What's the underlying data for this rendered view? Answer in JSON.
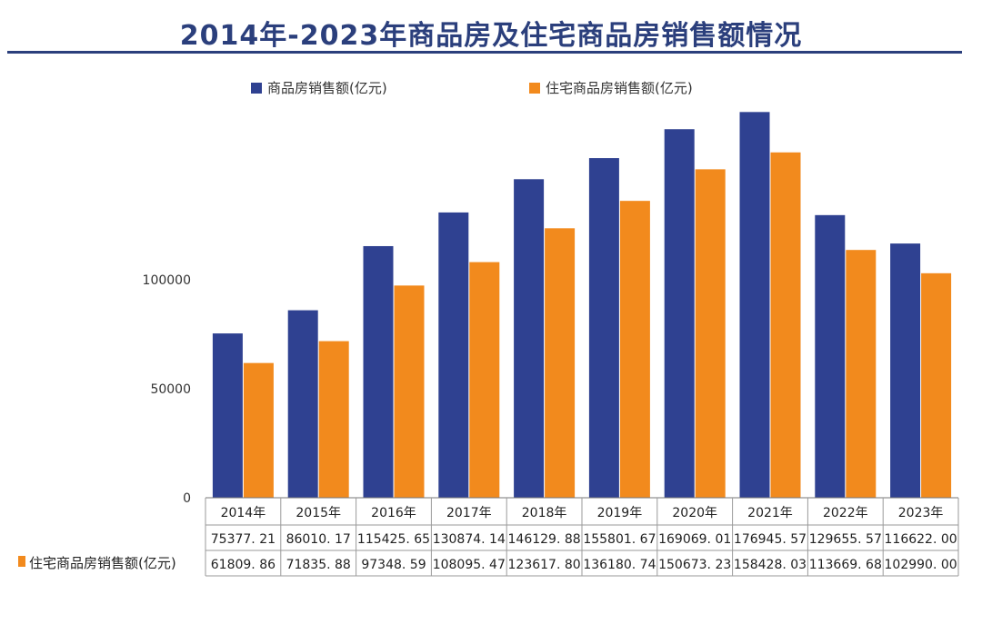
{
  "chart_data": {
    "type": "bar",
    "title": "2014年-2023年商品房及住宅商品房销售额情况",
    "categories": [
      "2014年",
      "2015年",
      "2016年",
      "2017年",
      "2018年",
      "2019年",
      "2020年",
      "2021年",
      "2022年",
      "2023年"
    ],
    "series": [
      {
        "name": "商品房销售额(亿元)",
        "color": "#2f4191",
        "values": [
          75377.21,
          86010.17,
          115425.65,
          130874.14,
          146129.88,
          155801.67,
          169069.01,
          176945.57,
          129655.57,
          116622.0
        ],
        "labels": [
          "75377. 21",
          "86010. 17",
          "115425. 65",
          "130874. 14",
          "146129. 88",
          "155801. 67",
          "169069. 01",
          "176945. 57",
          "129655. 57",
          "116622. 00"
        ]
      },
      {
        "name": "住宅商品房销售额(亿元)",
        "color": "#f28a1d",
        "values": [
          61809.86,
          71835.88,
          97348.59,
          108095.47,
          123617.8,
          136180.74,
          150673.23,
          158428.03,
          113669.68,
          102990.0
        ],
        "labels": [
          "61809. 86",
          "71835. 88",
          "97348. 59",
          "108095. 47",
          "123617. 80",
          "136180. 74",
          "150673. 23",
          "158428. 03",
          "113669. 68",
          "102990. 00"
        ]
      }
    ],
    "yticks": [
      "0",
      "50000",
      "100000"
    ],
    "ylim": [
      0,
      180000
    ],
    "grid": false,
    "legend": "top"
  }
}
